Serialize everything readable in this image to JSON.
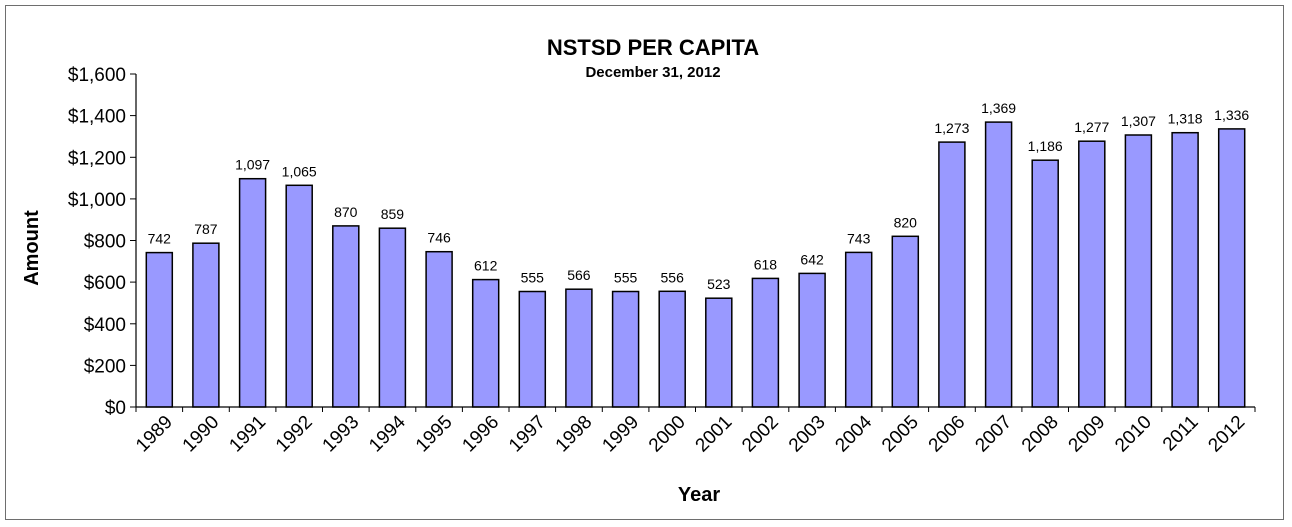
{
  "chart_data": {
    "type": "bar",
    "title": "NSTSD PER CAPITA",
    "subtitle": "December 31, 2012",
    "xlabel": "Year",
    "ylabel": "Amount",
    "ylim": [
      0,
      1600
    ],
    "yticks": [
      "$0",
      "$200",
      "$400",
      "$600",
      "$800",
      "$1,000",
      "$1,200",
      "$1,400",
      "$1,600"
    ],
    "categories": [
      "1989",
      "1990",
      "1991",
      "1992",
      "1993",
      "1994",
      "1995",
      "1996",
      "1997",
      "1998",
      "1999",
      "2000",
      "2001",
      "2002",
      "2003",
      "2004",
      "2005",
      "2006",
      "2007",
      "2008",
      "2009",
      "2010",
      "2011",
      "2012"
    ],
    "values": [
      742,
      787,
      1097,
      1065,
      870,
      859,
      746,
      612,
      555,
      566,
      555,
      556,
      523,
      618,
      642,
      743,
      820,
      1273,
      1369,
      1186,
      1277,
      1307,
      1318,
      1336
    ],
    "data_labels": [
      "742",
      "787",
      "1,097",
      "1,065",
      "870",
      "859",
      "746",
      "612",
      "555",
      "566",
      "555",
      "556",
      "523",
      "618",
      "642",
      "743",
      "820",
      "1,273",
      "1,369",
      "1,186",
      "1,277",
      "1,307",
      "1,318",
      "1,336"
    ],
    "bar_color": "#9999ff",
    "bar_border": "#000000",
    "grid": false,
    "legend": "none"
  }
}
